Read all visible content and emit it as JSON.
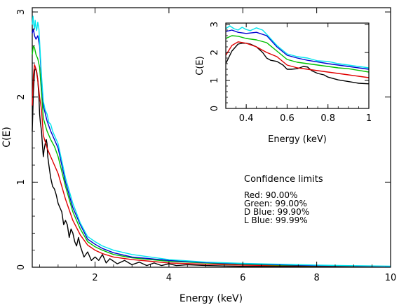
{
  "chart_data": [
    {
      "type": "line",
      "xlabel": "Energy (keV)",
      "ylabel": "C(E)",
      "xlim": [
        0.3,
        10
      ],
      "ylim": [
        0,
        3.05
      ],
      "xticks": [
        2,
        4,
        6,
        8,
        10
      ],
      "yticks": [
        0,
        1,
        2,
        3
      ],
      "grid": false,
      "annotation": {
        "title": "Confidence limits",
        "lines": [
          "Red: 90.00%",
          "Green: 99.00%",
          "D Blue: 99.90%",
          "L Blue: 99.99%"
        ]
      },
      "series": [
        {
          "color": "#000000",
          "x": [
            0.3,
            0.33,
            0.36,
            0.38,
            0.4,
            0.42,
            0.45,
            0.48,
            0.5,
            0.52,
            0.55,
            0.58,
            0.6,
            0.62,
            0.65,
            0.68,
            0.7,
            0.72,
            0.75,
            0.8,
            0.85,
            0.9,
            0.95,
            1.0,
            1.05,
            1.1,
            1.15,
            1.2,
            1.25,
            1.3,
            1.35,
            1.4,
            1.45,
            1.5,
            1.55,
            1.6,
            1.7,
            1.8,
            1.9,
            2.0,
            2.1,
            2.2,
            2.3,
            2.4,
            2.6,
            2.8,
            3.0,
            3.2,
            3.4,
            3.6,
            3.8,
            4.0,
            4.2,
            4.5,
            5.0,
            5.5,
            6.0,
            6.5,
            7.0,
            8.0,
            9.0,
            10.0
          ],
          "y": [
            1.6,
            2.05,
            2.3,
            2.33,
            2.33,
            2.3,
            2.2,
            2.0,
            1.8,
            1.7,
            1.6,
            1.4,
            1.3,
            1.38,
            1.45,
            1.5,
            1.45,
            1.3,
            1.2,
            1.05,
            0.95,
            0.92,
            0.85,
            0.75,
            0.7,
            0.65,
            0.5,
            0.55,
            0.5,
            0.35,
            0.45,
            0.4,
            0.3,
            0.25,
            0.35,
            0.25,
            0.12,
            0.18,
            0.08,
            0.12,
            0.08,
            0.15,
            0.05,
            0.1,
            0.04,
            0.08,
            0.03,
            0.06,
            0.02,
            0.05,
            0.02,
            0.04,
            0.02,
            0.03,
            0.02,
            0.015,
            0.01,
            0.01,
            0.01,
            0.01,
            0.008,
            0.005
          ]
        },
        {
          "color": "#e00000",
          "x": [
            0.3,
            0.33,
            0.36,
            0.4,
            0.45,
            0.5,
            0.55,
            0.6,
            0.7,
            0.8,
            0.9,
            1.0,
            1.2,
            1.4,
            1.6,
            1.8,
            2.0,
            2.2,
            2.5,
            3.0,
            3.5,
            4.0,
            5.0,
            6.0,
            7.0,
            8.0,
            9.0,
            10.0
          ],
          "y": [
            1.9,
            2.25,
            2.38,
            2.33,
            2.2,
            2.0,
            1.85,
            1.55,
            1.4,
            1.3,
            1.2,
            1.1,
            0.8,
            0.55,
            0.38,
            0.26,
            0.2,
            0.16,
            0.12,
            0.09,
            0.07,
            0.05,
            0.035,
            0.025,
            0.02,
            0.015,
            0.01,
            0.008
          ]
        },
        {
          "color": "#00c000",
          "x": [
            0.3,
            0.33,
            0.36,
            0.4,
            0.45,
            0.5,
            0.55,
            0.6,
            0.7,
            0.8,
            0.9,
            1.0,
            1.2,
            1.4,
            1.6,
            1.8,
            2.0,
            2.2,
            2.5,
            3.0,
            3.5,
            4.0,
            5.0,
            6.0,
            7.0,
            8.0,
            9.0,
            10.0
          ],
          "y": [
            2.5,
            2.6,
            2.58,
            2.5,
            2.45,
            2.35,
            2.05,
            1.75,
            1.6,
            1.5,
            1.42,
            1.3,
            0.95,
            0.65,
            0.45,
            0.3,
            0.24,
            0.2,
            0.15,
            0.11,
            0.09,
            0.07,
            0.05,
            0.035,
            0.025,
            0.018,
            0.012,
            0.01
          ]
        },
        {
          "color": "#0000d0",
          "x": [
            0.3,
            0.33,
            0.36,
            0.4,
            0.45,
            0.5,
            0.55,
            0.6,
            0.7,
            0.8,
            0.9,
            1.0,
            1.2,
            1.4,
            1.6,
            1.8,
            2.0,
            2.2,
            2.5,
            3.0,
            3.5,
            4.0,
            5.0,
            6.0,
            7.0,
            8.0,
            9.0,
            10.0
          ],
          "y": [
            2.75,
            2.8,
            2.72,
            2.68,
            2.72,
            2.6,
            2.2,
            1.9,
            1.72,
            1.6,
            1.5,
            1.4,
            1.0,
            0.7,
            0.5,
            0.33,
            0.27,
            0.22,
            0.17,
            0.12,
            0.1,
            0.08,
            0.055,
            0.04,
            0.03,
            0.02,
            0.015,
            0.01
          ]
        },
        {
          "color": "#00e5ee",
          "x": [
            0.3,
            0.32,
            0.34,
            0.36,
            0.38,
            0.4,
            0.42,
            0.45,
            0.48,
            0.5,
            0.55,
            0.6,
            0.65,
            0.7,
            0.75,
            0.8,
            0.85,
            0.9,
            0.95,
            1.0,
            1.2,
            1.4,
            1.6,
            1.8,
            2.0,
            2.2,
            2.5,
            3.0,
            3.5,
            4.0,
            5.0,
            6.0,
            7.0,
            8.0,
            9.0,
            10.0
          ],
          "y": [
            2.85,
            2.95,
            2.85,
            2.8,
            2.9,
            2.82,
            2.78,
            2.88,
            2.8,
            2.65,
            2.25,
            1.95,
            1.85,
            1.8,
            1.7,
            1.68,
            1.6,
            1.55,
            1.5,
            1.45,
            1.05,
            0.75,
            0.52,
            0.36,
            0.3,
            0.25,
            0.2,
            0.15,
            0.12,
            0.09,
            0.06,
            0.045,
            0.035,
            0.025,
            0.018,
            0.012
          ]
        }
      ]
    },
    {
      "type": "line",
      "xlabel": "Energy (keV)",
      "ylabel": "C(E)",
      "xlim": [
        0.3,
        1.0
      ],
      "ylim": [
        0,
        3.05
      ],
      "xticks": [
        0.4,
        0.6,
        0.8,
        1
      ],
      "yticks": [
        0,
        1,
        2,
        3
      ],
      "grid": false,
      "series": [
        {
          "color": "#000000",
          "x": [
            0.3,
            0.33,
            0.36,
            0.38,
            0.4,
            0.42,
            0.45,
            0.48,
            0.5,
            0.52,
            0.55,
            0.58,
            0.6,
            0.62,
            0.65,
            0.68,
            0.7,
            0.72,
            0.75,
            0.78,
            0.8,
            0.85,
            0.9,
            0.95,
            1.0
          ],
          "y": [
            1.6,
            2.05,
            2.3,
            2.33,
            2.33,
            2.3,
            2.2,
            2.0,
            1.8,
            1.72,
            1.68,
            1.55,
            1.4,
            1.4,
            1.42,
            1.5,
            1.48,
            1.35,
            1.25,
            1.2,
            1.12,
            1.02,
            0.96,
            0.9,
            0.88
          ]
        },
        {
          "color": "#e00000",
          "x": [
            0.3,
            0.33,
            0.36,
            0.4,
            0.45,
            0.5,
            0.55,
            0.6,
            0.65,
            0.7,
            0.75,
            0.8,
            0.85,
            0.9,
            0.95,
            1.0
          ],
          "y": [
            1.9,
            2.25,
            2.38,
            2.33,
            2.2,
            2.0,
            1.85,
            1.55,
            1.45,
            1.4,
            1.35,
            1.3,
            1.25,
            1.2,
            1.15,
            1.1
          ]
        },
        {
          "color": "#00c000",
          "x": [
            0.3,
            0.33,
            0.36,
            0.4,
            0.45,
            0.5,
            0.55,
            0.6,
            0.65,
            0.7,
            0.75,
            0.8,
            0.85,
            0.9,
            0.95,
            1.0
          ],
          "y": [
            2.5,
            2.6,
            2.58,
            2.5,
            2.45,
            2.35,
            2.05,
            1.75,
            1.65,
            1.6,
            1.55,
            1.5,
            1.45,
            1.42,
            1.36,
            1.3
          ]
        },
        {
          "color": "#0000d0",
          "x": [
            0.3,
            0.33,
            0.36,
            0.4,
            0.45,
            0.5,
            0.55,
            0.6,
            0.65,
            0.7,
            0.75,
            0.8,
            0.85,
            0.9,
            0.95,
            1.0
          ],
          "y": [
            2.75,
            2.8,
            2.72,
            2.68,
            2.72,
            2.6,
            2.2,
            1.9,
            1.8,
            1.72,
            1.66,
            1.6,
            1.55,
            1.5,
            1.45,
            1.4
          ]
        },
        {
          "color": "#00e5ee",
          "x": [
            0.3,
            0.32,
            0.34,
            0.36,
            0.38,
            0.4,
            0.42,
            0.45,
            0.48,
            0.5,
            0.55,
            0.6,
            0.65,
            0.7,
            0.75,
            0.8,
            0.85,
            0.9,
            0.95,
            1.0
          ],
          "y": [
            2.85,
            2.95,
            2.85,
            2.8,
            2.9,
            2.82,
            2.78,
            2.88,
            2.8,
            2.65,
            2.25,
            1.95,
            1.85,
            1.8,
            1.7,
            1.68,
            1.6,
            1.55,
            1.5,
            1.45
          ]
        }
      ]
    }
  ]
}
